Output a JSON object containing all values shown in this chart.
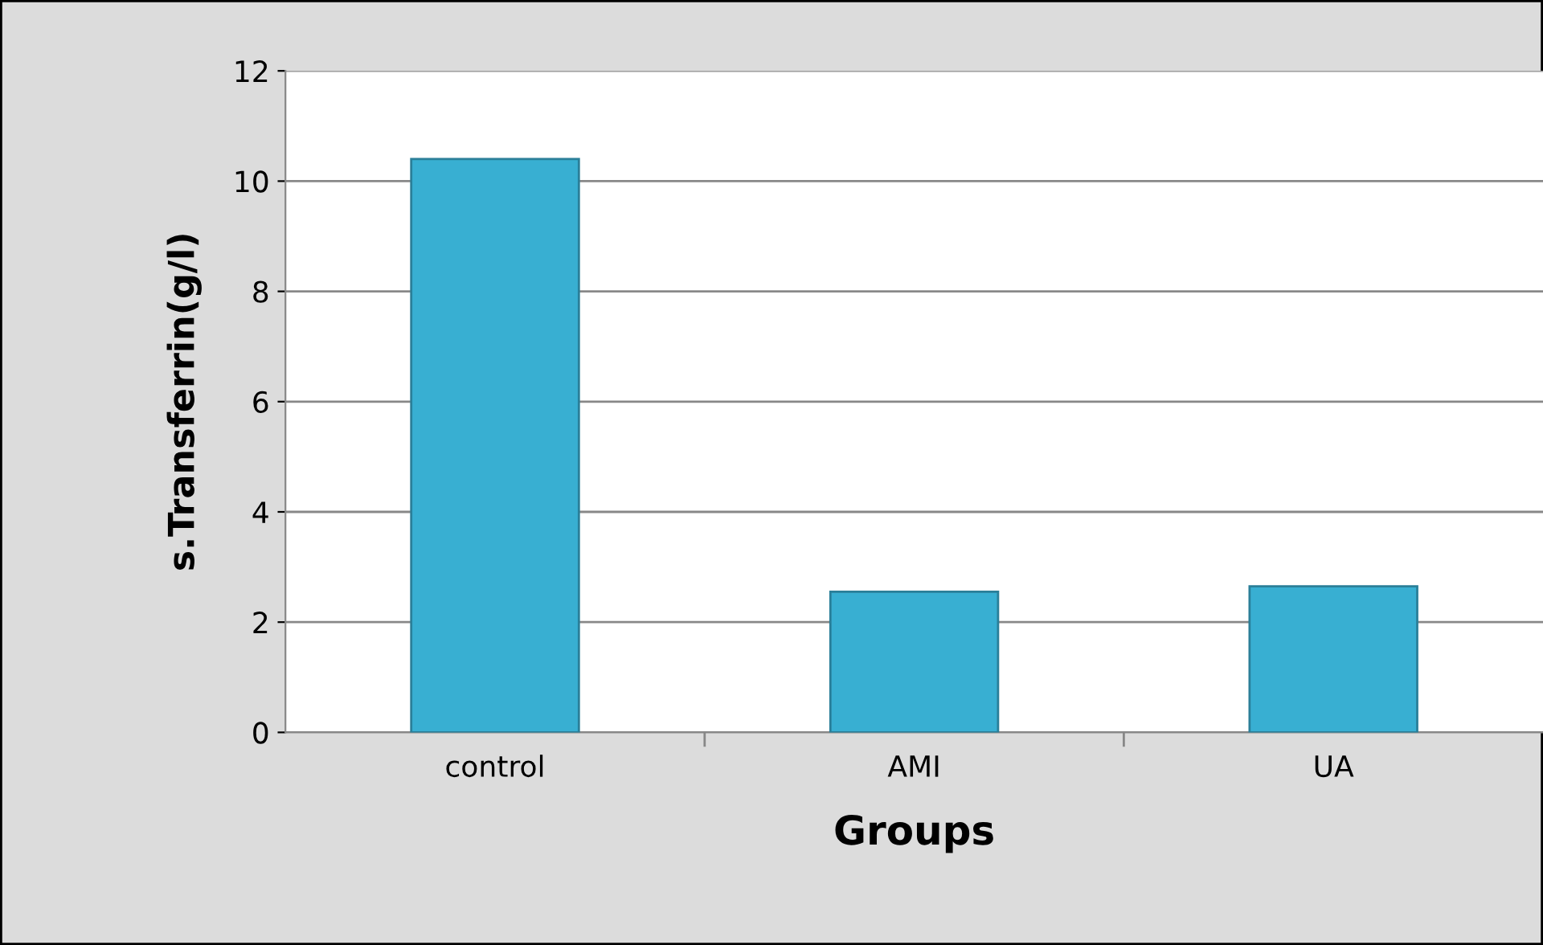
{
  "chart_data": {
    "type": "bar",
    "xlabel": "Groups",
    "ylabel": "s.Transferrin(g/l)",
    "categories": [
      "control",
      "AMI",
      "UA"
    ],
    "values": [
      10.4,
      2.55,
      2.65
    ],
    "color": "#38afd2",
    "ylim": [
      0,
      12
    ],
    "yticks": [
      0,
      2,
      4,
      6,
      8,
      10,
      12
    ],
    "grid": "y"
  }
}
